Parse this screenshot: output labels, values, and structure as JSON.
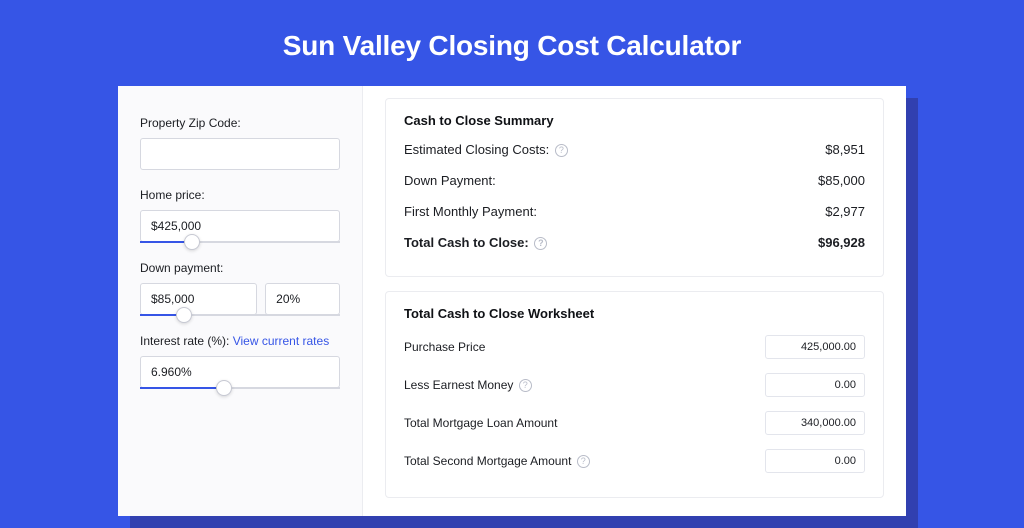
{
  "colors": {
    "page_bg": "#3655e6",
    "shadow": "#3140b0",
    "panel_bg": "#ffffff",
    "left_bg": "#fafafc",
    "border": "#d6d8e0",
    "border_soft": "#ebecf0",
    "text": "#1b1d22",
    "accent": "#3655e6",
    "muted": "#b8bcc8"
  },
  "page": {
    "title": "Sun Valley Closing Cost Calculator"
  },
  "inputs": {
    "zip": {
      "label": "Property Zip Code:",
      "value": ""
    },
    "home_price": {
      "label": "Home price:",
      "value": "$425,000",
      "slider_pct": 26
    },
    "down_payment": {
      "label": "Down payment:",
      "value": "$85,000",
      "pct_value": "20%",
      "slider_pct": 22
    },
    "interest_rate": {
      "label": "Interest rate (%): ",
      "link": "View current rates",
      "value": "6.960%",
      "slider_pct": 42
    }
  },
  "summary": {
    "title": "Cash to Close Summary",
    "rows": [
      {
        "label": "Estimated Closing Costs:",
        "help": true,
        "value": "$8,951",
        "bold": false
      },
      {
        "label": "Down Payment:",
        "help": false,
        "value": "$85,000",
        "bold": false
      },
      {
        "label": "First Monthly Payment:",
        "help": false,
        "value": "$2,977",
        "bold": false
      },
      {
        "label": "Total Cash to Close:",
        "help": true,
        "value": "$96,928",
        "bold": true
      }
    ]
  },
  "worksheet": {
    "title": "Total Cash to Close Worksheet",
    "rows": [
      {
        "label": "Purchase Price",
        "help": false,
        "value": "425,000.00"
      },
      {
        "label": "Less Earnest Money",
        "help": true,
        "value": "0.00"
      },
      {
        "label": "Total Mortgage Loan Amount",
        "help": false,
        "value": "340,000.00"
      },
      {
        "label": "Total Second Mortgage Amount",
        "help": true,
        "value": "0.00"
      }
    ]
  }
}
